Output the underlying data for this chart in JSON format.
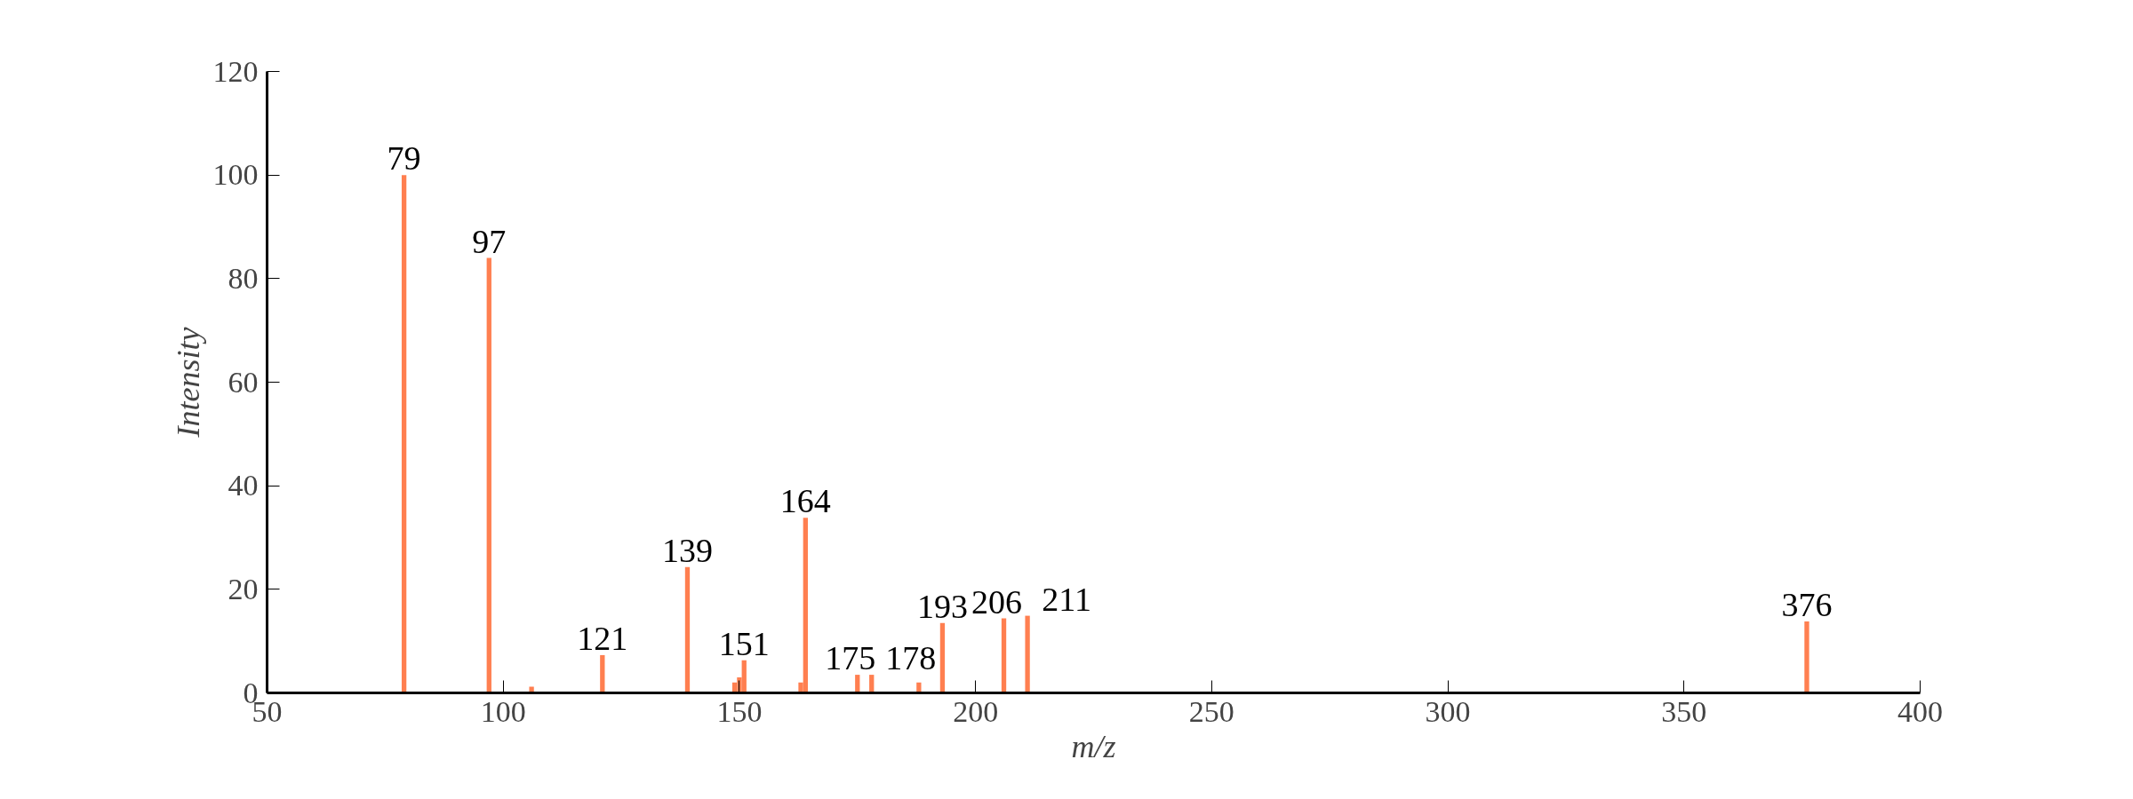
{
  "chart_data": {
    "type": "bar",
    "xlabel": "m/z",
    "ylabel": "Intensity",
    "x": [
      79,
      97,
      106,
      121,
      139,
      149,
      150,
      151,
      163,
      164,
      175,
      178,
      188,
      193,
      206,
      211,
      376
    ],
    "values": [
      100,
      84,
      1.2,
      7.3,
      24.3,
      2,
      3,
      6.3,
      2,
      33.8,
      3.5,
      3.5,
      2,
      13.5,
      14.4,
      14.9,
      13.8
    ],
    "annotations": [
      {
        "text": "79",
        "x": 79,
        "y": 100
      },
      {
        "text": "97",
        "x": 97,
        "y": 84
      },
      {
        "text": "121",
        "x": 121,
        "y": 7.3
      },
      {
        "text": "139",
        "x": 139,
        "y": 24.3
      },
      {
        "text": "151",
        "x": 151,
        "y": 6.3
      },
      {
        "text": "164",
        "x": 164,
        "y": 33.8
      },
      {
        "text": "175",
        "x": 175,
        "y": 3.5
      },
      {
        "text": "178",
        "x": 178,
        "y": 3.5
      },
      {
        "text": "193",
        "x": 193,
        "y": 13.5
      },
      {
        "text": "206",
        "x": 206,
        "y": 14.4
      },
      {
        "text": "211",
        "x": 211,
        "y": 14.9
      },
      {
        "text": "376",
        "x": 376,
        "y": 13.8
      }
    ],
    "color": "#ff7f50",
    "xlim": [
      50,
      400
    ],
    "xticks": [
      50,
      100,
      150,
      200,
      250,
      300,
      350,
      400
    ],
    "ylim": [
      0,
      120
    ],
    "yticks": [
      0,
      20,
      40,
      60,
      80,
      100,
      120
    ],
    "grid": false
  }
}
